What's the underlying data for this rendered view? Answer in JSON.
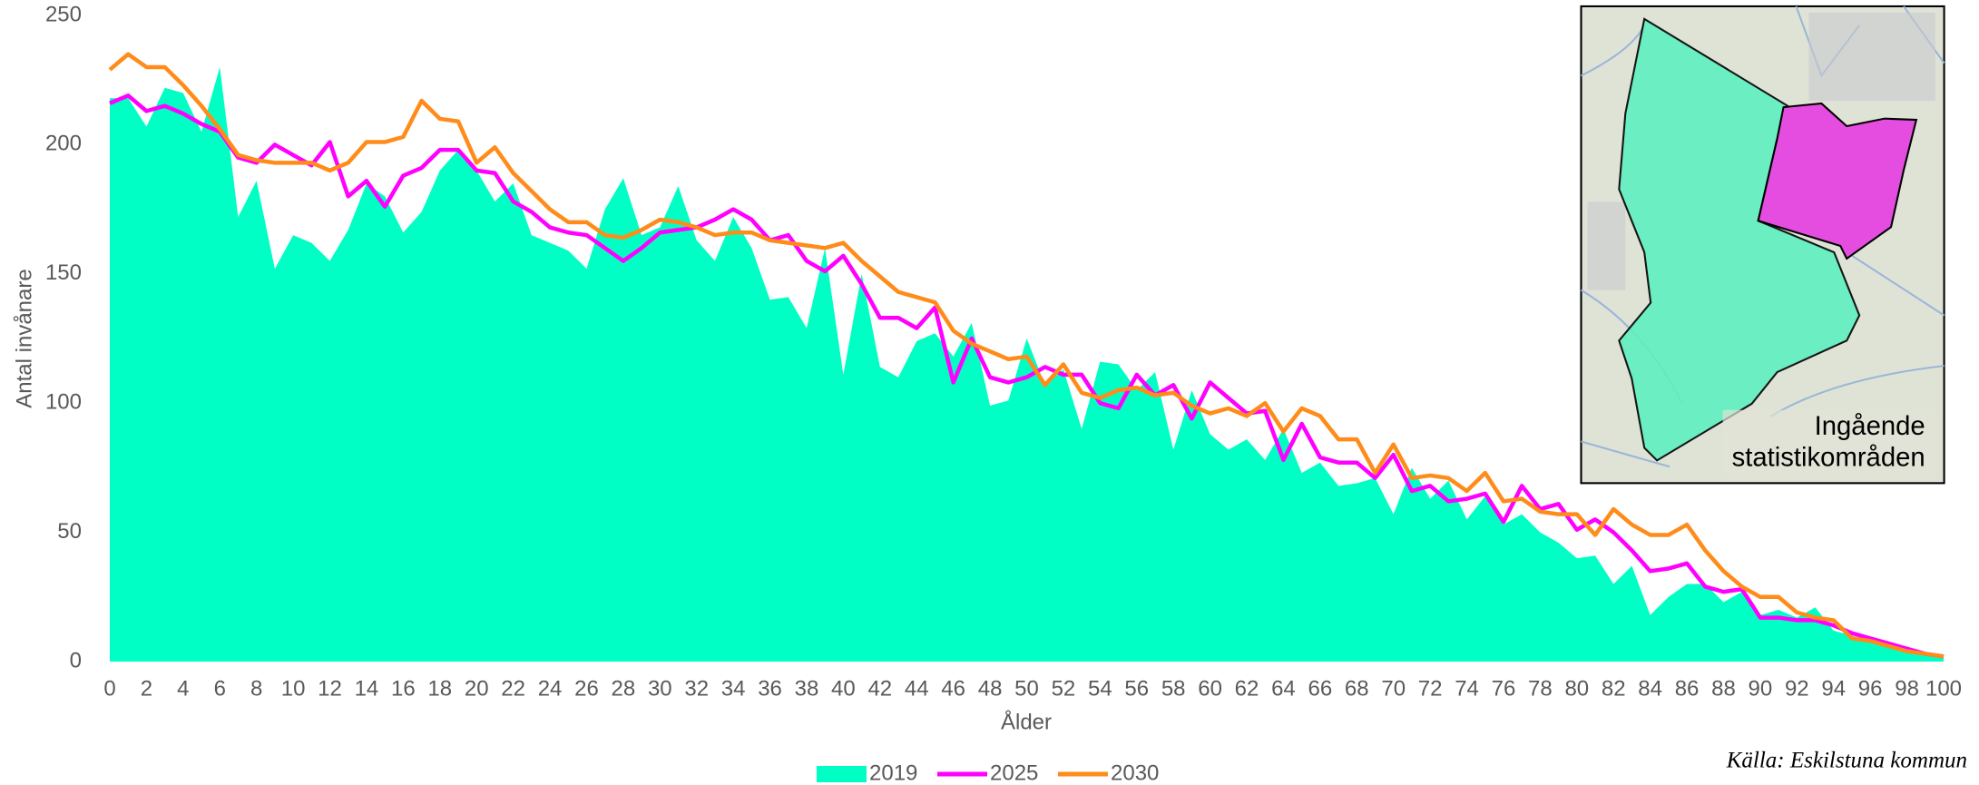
{
  "chart_data": {
    "type": "line",
    "x_label": "Ålder",
    "y_label": "Antal invånare",
    "source": "Källa: Eskilstuna kommun",
    "inset_label": [
      "Ingående",
      "statistikområden"
    ],
    "x": [
      0,
      1,
      2,
      3,
      4,
      5,
      6,
      7,
      8,
      9,
      10,
      11,
      12,
      13,
      14,
      15,
      16,
      17,
      18,
      19,
      20,
      21,
      22,
      23,
      24,
      25,
      26,
      27,
      28,
      29,
      30,
      31,
      32,
      33,
      34,
      35,
      36,
      37,
      38,
      39,
      40,
      41,
      42,
      43,
      44,
      45,
      46,
      47,
      48,
      49,
      50,
      51,
      52,
      53,
      54,
      55,
      56,
      57,
      58,
      59,
      60,
      61,
      62,
      63,
      64,
      65,
      66,
      67,
      68,
      69,
      70,
      71,
      72,
      73,
      74,
      75,
      76,
      77,
      78,
      79,
      80,
      81,
      82,
      83,
      84,
      85,
      86,
      87,
      88,
      89,
      90,
      91,
      92,
      93,
      94,
      95,
      96,
      97,
      98,
      99,
      100
    ],
    "xlim": [
      0,
      100
    ],
    "xticks": [
      0,
      2,
      4,
      6,
      8,
      10,
      12,
      14,
      16,
      18,
      20,
      22,
      24,
      26,
      28,
      30,
      32,
      34,
      36,
      38,
      40,
      42,
      44,
      46,
      48,
      50,
      52,
      54,
      56,
      58,
      60,
      62,
      64,
      66,
      68,
      70,
      72,
      74,
      76,
      78,
      80,
      82,
      84,
      86,
      88,
      90,
      92,
      94,
      96,
      98,
      100
    ],
    "ylim": [
      0,
      250
    ],
    "yticks": [
      0,
      50,
      100,
      150,
      200,
      250
    ],
    "grid": false,
    "legend": "bottom",
    "series": [
      {
        "name": "2019",
        "color": "#00ffc5",
        "style": "area",
        "values": [
          218,
          218,
          207,
          222,
          220,
          205,
          230,
          172,
          186,
          152,
          165,
          162,
          155,
          167,
          185,
          180,
          166,
          174,
          190,
          198,
          190,
          178,
          185,
          165,
          162,
          159,
          152,
          175,
          187,
          165,
          168,
          184,
          163,
          155,
          172,
          160,
          140,
          141,
          129,
          160,
          111,
          150,
          114,
          110,
          124,
          127,
          118,
          131,
          99,
          101,
          125,
          107,
          113,
          90,
          116,
          115,
          105,
          112,
          82,
          105,
          88,
          82,
          86,
          78,
          90,
          73,
          77,
          68,
          69,
          71,
          57,
          75,
          63,
          70,
          55,
          64,
          53,
          57,
          50,
          46,
          40,
          41,
          30,
          37,
          18,
          25,
          30,
          30,
          23,
          27,
          18,
          20,
          17,
          21,
          12,
          10,
          8,
          6,
          4,
          3,
          2
        ]
      },
      {
        "name": "2025",
        "color": "#ff00ff",
        "style": "line",
        "values": [
          216,
          219,
          213,
          215,
          212,
          208,
          205,
          195,
          193,
          200,
          196,
          192,
          201,
          180,
          186,
          176,
          188,
          191,
          198,
          198,
          190,
          189,
          178,
          174,
          168,
          166,
          165,
          160,
          155,
          160,
          166,
          167,
          168,
          171,
          175,
          171,
          163,
          165,
          155,
          151,
          157,
          146,
          133,
          133,
          129,
          137,
          108,
          125,
          110,
          108,
          110,
          114,
          111,
          111,
          100,
          98,
          111,
          103,
          107,
          94,
          108,
          102,
          96,
          97,
          78,
          92,
          79,
          77,
          77,
          71,
          80,
          66,
          68,
          62,
          63,
          65,
          54,
          68,
          59,
          61,
          51,
          55,
          50,
          43,
          35,
          36,
          38,
          29,
          27,
          28,
          17,
          17,
          16,
          16,
          14,
          11,
          9,
          7,
          5,
          3,
          2
        ]
      },
      {
        "name": "2030",
        "color": "#ff8c1a",
        "style": "line",
        "values": [
          229,
          235,
          230,
          230,
          223,
          215,
          206,
          196,
          194,
          193,
          193,
          193,
          190,
          193,
          201,
          201,
          203,
          217,
          210,
          209,
          193,
          199,
          189,
          182,
          175,
          170,
          170,
          165,
          164,
          167,
          171,
          170,
          168,
          165,
          166,
          166,
          163,
          162,
          161,
          160,
          162,
          155,
          149,
          143,
          141,
          139,
          128,
          123,
          120,
          117,
          118,
          107,
          115,
          104,
          102,
          105,
          106,
          103,
          104,
          99,
          96,
          98,
          95,
          100,
          89,
          98,
          95,
          86,
          86,
          73,
          84,
          71,
          72,
          71,
          66,
          73,
          62,
          63,
          58,
          57,
          57,
          49,
          59,
          53,
          49,
          49,
          53,
          43,
          35,
          29,
          25,
          25,
          19,
          17,
          16,
          9,
          8,
          6,
          4,
          3,
          2
        ]
      }
    ]
  }
}
